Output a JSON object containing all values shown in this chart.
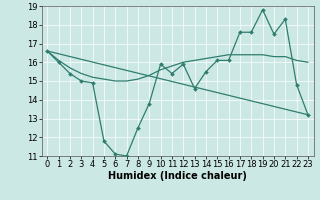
{
  "title": "",
  "xlabel": "Humidex (Indice chaleur)",
  "ylabel": "",
  "background_color": "#cce8e5",
  "plot_bg_color": "#cce8e5",
  "line_color": "#2e7d6e",
  "grid_color": "#ffffff",
  "xlim": [
    -0.5,
    23.5
  ],
  "ylim": [
    11,
    19
  ],
  "xticks": [
    0,
    1,
    2,
    3,
    4,
    5,
    6,
    7,
    8,
    9,
    10,
    11,
    12,
    13,
    14,
    15,
    16,
    17,
    18,
    19,
    20,
    21,
    22,
    23
  ],
  "yticks": [
    11,
    12,
    13,
    14,
    15,
    16,
    17,
    18,
    19
  ],
  "series1_x": [
    0,
    1,
    2,
    3,
    4,
    5,
    6,
    7,
    8,
    9,
    10,
    11,
    12,
    13,
    14,
    15,
    16,
    17,
    18,
    19,
    20,
    21,
    22,
    23
  ],
  "series1_y": [
    16.6,
    16.0,
    15.4,
    15.0,
    14.9,
    11.8,
    11.1,
    11.0,
    12.5,
    13.8,
    15.9,
    15.4,
    15.9,
    14.6,
    15.5,
    16.1,
    16.1,
    17.6,
    17.6,
    18.8,
    17.5,
    18.3,
    14.8,
    13.2
  ],
  "series2_x": [
    0,
    1,
    2,
    3,
    4,
    5,
    6,
    7,
    8,
    9,
    10,
    11,
    12,
    13,
    14,
    15,
    16,
    17,
    18,
    19,
    20,
    21,
    22,
    23
  ],
  "series2_y": [
    16.6,
    16.1,
    15.7,
    15.4,
    15.2,
    15.1,
    15.0,
    15.0,
    15.1,
    15.3,
    15.6,
    15.8,
    16.0,
    16.1,
    16.2,
    16.3,
    16.4,
    16.4,
    16.4,
    16.4,
    16.3,
    16.3,
    16.1,
    16.0
  ],
  "series3_x": [
    0,
    23
  ],
  "series3_y": [
    16.6,
    13.2
  ],
  "tick_fontsize": 6,
  "xlabel_fontsize": 7
}
